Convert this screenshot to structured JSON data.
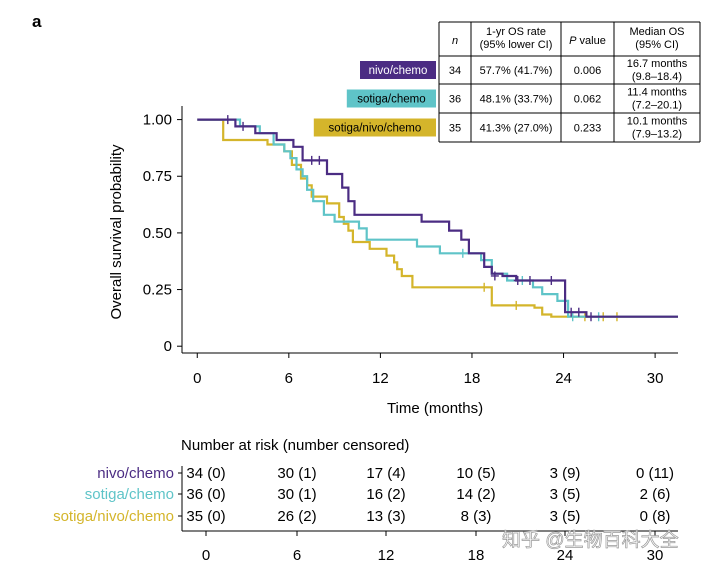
{
  "chart_data": {
    "type": "line",
    "subtype": "kaplan-meier",
    "panel_label": "a",
    "xlabel": "Time (months)",
    "ylabel": "Overall survival probability",
    "xlim": [
      -1,
      31.5
    ],
    "ylim": [
      -0.03,
      1.06
    ],
    "xticks": [
      0,
      6,
      12,
      18,
      24,
      30
    ],
    "xtick_labels": [
      "0",
      "6",
      "12",
      "18",
      "24",
      "30"
    ],
    "yticks": [
      0,
      0.25,
      0.5,
      0.75,
      1.0
    ],
    "ytick_labels": [
      "0",
      "0.25",
      "0.50",
      "0.75",
      "1.00"
    ],
    "series": [
      {
        "name": "nivo/chemo",
        "color": "#4b2c83",
        "steps": [
          [
            0,
            1.0
          ],
          [
            2.5,
            0.97
          ],
          [
            3.8,
            0.94
          ],
          [
            5.2,
            0.91
          ],
          [
            6.3,
            0.88
          ],
          [
            6.9,
            0.82
          ],
          [
            8.5,
            0.76
          ],
          [
            9.5,
            0.7
          ],
          [
            9.9,
            0.64
          ],
          [
            10.3,
            0.58
          ],
          [
            14.7,
            0.55
          ],
          [
            16.5,
            0.51
          ],
          [
            17.3,
            0.47
          ],
          [
            17.8,
            0.41
          ],
          [
            18.8,
            0.35
          ],
          [
            19.3,
            0.32
          ],
          [
            20.0,
            0.31
          ],
          [
            20.9,
            0.29
          ],
          [
            24.1,
            0.15
          ],
          [
            25.5,
            0.13
          ],
          [
            31.5,
            0.13
          ]
        ],
        "censor": [
          [
            2.0,
            1.0
          ],
          [
            3.0,
            0.97
          ],
          [
            7.5,
            0.82
          ],
          [
            8.0,
            0.82
          ],
          [
            19.5,
            0.31
          ],
          [
            21.0,
            0.29
          ],
          [
            21.8,
            0.29
          ],
          [
            23.2,
            0.29
          ],
          [
            24.5,
            0.15
          ],
          [
            25.0,
            0.15
          ],
          [
            25.8,
            0.13
          ]
        ]
      },
      {
        "name": "sotiga/chemo",
        "color": "#5fc4c8",
        "steps": [
          [
            0,
            1.0
          ],
          [
            2.8,
            0.97
          ],
          [
            4.1,
            0.94
          ],
          [
            5.0,
            0.89
          ],
          [
            5.7,
            0.86
          ],
          [
            6.1,
            0.83
          ],
          [
            6.5,
            0.78
          ],
          [
            6.9,
            0.75
          ],
          [
            7.2,
            0.69
          ],
          [
            7.6,
            0.64
          ],
          [
            8.3,
            0.58
          ],
          [
            9.0,
            0.55
          ],
          [
            10.6,
            0.52
          ],
          [
            11.1,
            0.47
          ],
          [
            14.4,
            0.44
          ],
          [
            15.9,
            0.41
          ],
          [
            18.6,
            0.38
          ],
          [
            19.3,
            0.32
          ],
          [
            20.3,
            0.29
          ],
          [
            22.0,
            0.26
          ],
          [
            22.6,
            0.23
          ],
          [
            23.6,
            0.2
          ],
          [
            24.3,
            0.13
          ],
          [
            31.5,
            0.13
          ]
        ],
        "censor": [
          [
            17.4,
            0.41
          ],
          [
            21.3,
            0.29
          ],
          [
            24.6,
            0.13
          ],
          [
            26.3,
            0.13
          ]
        ]
      },
      {
        "name": "sotiga/nivo/chemo",
        "color": "#d4b52b",
        "steps": [
          [
            0,
            1.0
          ],
          [
            1.7,
            0.91
          ],
          [
            4.6,
            0.89
          ],
          [
            5.7,
            0.86
          ],
          [
            6.2,
            0.8
          ],
          [
            6.8,
            0.74
          ],
          [
            7.2,
            0.71
          ],
          [
            7.5,
            0.66
          ],
          [
            8.5,
            0.63
          ],
          [
            9.3,
            0.57
          ],
          [
            9.6,
            0.54
          ],
          [
            9.9,
            0.51
          ],
          [
            10.2,
            0.46
          ],
          [
            11.3,
            0.43
          ],
          [
            12.4,
            0.4
          ],
          [
            12.9,
            0.37
          ],
          [
            13.1,
            0.34
          ],
          [
            13.4,
            0.31
          ],
          [
            14.1,
            0.26
          ],
          [
            19.3,
            0.18
          ],
          [
            22.1,
            0.17
          ],
          [
            22.6,
            0.14
          ],
          [
            23.2,
            0.13
          ],
          [
            31.5,
            0.13
          ]
        ],
        "censor": [
          [
            18.8,
            0.26
          ],
          [
            20.9,
            0.18
          ],
          [
            25.4,
            0.13
          ],
          [
            26.6,
            0.13
          ],
          [
            27.5,
            0.13
          ]
        ]
      }
    ],
    "summary_table": {
      "headers": [
        "n",
        "1-yr OS rate\n(95% lower CI)",
        "P value",
        "Median OS\n(95% CI)"
      ],
      "rows": [
        {
          "label": "nivo/chemo",
          "n": "34",
          "os": "57.7% (41.7%)",
          "p": "0.006",
          "median": "16.7 months\n(9.8–18.4)"
        },
        {
          "label": "sotiga/chemo",
          "n": "36",
          "os": "48.1% (33.7%)",
          "p": "0.062",
          "median": "11.4 months\n(7.2–20.1)"
        },
        {
          "label": "sotiga/nivo/chemo",
          "n": "35",
          "os": "41.3% (27.0%)",
          "p": "0.233",
          "median": "10.1 months\n(7.9–13.2)"
        }
      ]
    },
    "risk_table": {
      "title": "Number at risk (number censored)",
      "times": [
        "0",
        "6",
        "12",
        "18",
        "24",
        "30"
      ],
      "rows": [
        {
          "name": "nivo/chemo",
          "counts": [
            "34 (0)",
            "30 (1)",
            "17 (4)",
            "10 (5)",
            "3 (9)",
            "0 (11)"
          ]
        },
        {
          "name": "sotiga/chemo",
          "counts": [
            "36 (0)",
            "30 (1)",
            "16 (2)",
            "14 (2)",
            "3 (5)",
            "2 (6)"
          ]
        },
        {
          "name": "sotiga/nivo/chemo",
          "counts": [
            "35 (0)",
            "26 (2)",
            "13 (3)",
            "8 (3)",
            "3 (5)",
            "0 (8)"
          ]
        }
      ]
    },
    "watermark": "知乎 @生物百科大全"
  }
}
